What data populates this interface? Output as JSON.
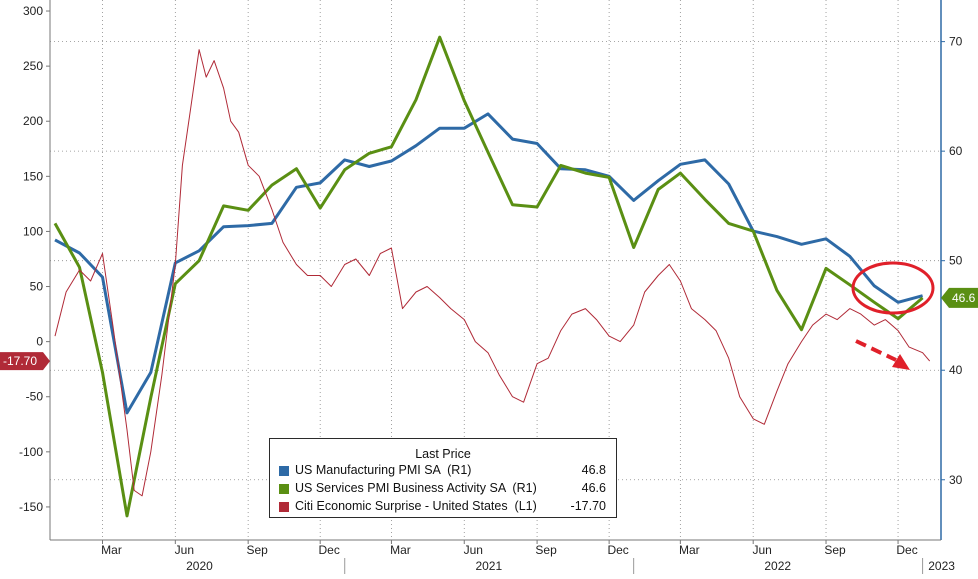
{
  "chart_data": {
    "type": "line",
    "legend": {
      "title": "Last Price",
      "placement": "bottom-center",
      "entries": [
        {
          "name": "US Manufacturing PMI SA  (R1)",
          "value": "46.8",
          "color": "#2e6aa6"
        },
        {
          "name": "US Services PMI Business Activity SA  (R1)",
          "value": "46.6",
          "color": "#5a8f13"
        },
        {
          "name": "Citi Economic Surprise - United States  (L1)",
          "value": "-17.70",
          "color": "#b02a37"
        }
      ]
    },
    "left_axis": {
      "ylim": [
        -180,
        310
      ],
      "ticks": [
        "300",
        "250",
        "200",
        "150",
        "100",
        "50",
        "0",
        "-50",
        "-100",
        "-150"
      ]
    },
    "right_axis": {
      "ylim": [
        24.5,
        73.8
      ],
      "ticks": [
        "70",
        "60",
        "50",
        "40",
        "30"
      ]
    },
    "x_axis": {
      "ticks": [
        "Mar",
        "Jun",
        "Sep",
        "Dec",
        "Mar",
        "Jun",
        "Sep",
        "Dec",
        "Mar",
        "Jun",
        "Sep",
        "Dec"
      ],
      "years": [
        "2020",
        "2021",
        "2022",
        "2023"
      ]
    },
    "grid": true,
    "series": [
      {
        "name": "US Manufacturing PMI SA  (R1)",
        "axis": "right",
        "color": "#2e6aa6",
        "x": [
          "2020-01",
          "2020-02",
          "2020-03",
          "2020-04",
          "2020-05",
          "2020-06",
          "2020-07",
          "2020-08",
          "2020-09",
          "2020-10",
          "2020-11",
          "2020-12",
          "2021-01",
          "2021-02",
          "2021-03",
          "2021-04",
          "2021-05",
          "2021-06",
          "2021-07",
          "2021-08",
          "2021-09",
          "2021-10",
          "2021-11",
          "2021-12",
          "2022-01",
          "2022-02",
          "2022-03",
          "2022-04",
          "2022-05",
          "2022-06",
          "2022-07",
          "2022-08",
          "2022-09",
          "2022-10",
          "2022-11",
          "2022-12",
          "2023-01"
        ],
        "values": [
          51.9,
          50.7,
          48.5,
          36.1,
          39.8,
          49.8,
          50.9,
          53.1,
          53.2,
          53.4,
          56.7,
          57.1,
          59.2,
          58.6,
          59.1,
          60.5,
          62.1,
          62.1,
          63.4,
          61.1,
          60.7,
          58.4,
          58.3,
          57.7,
          55.5,
          57.3,
          58.8,
          59.2,
          57.0,
          52.7,
          52.2,
          51.5,
          52.0,
          50.4,
          47.7,
          46.2,
          46.8
        ]
      },
      {
        "name": "US Services PMI Business Activity SA  (R1)",
        "axis": "right",
        "color": "#5a8f13",
        "x": [
          "2020-01",
          "2020-02",
          "2020-03",
          "2020-04",
          "2020-05",
          "2020-06",
          "2020-07",
          "2020-08",
          "2020-09",
          "2020-10",
          "2020-11",
          "2020-12",
          "2021-01",
          "2021-02",
          "2021-03",
          "2021-04",
          "2021-05",
          "2021-06",
          "2021-07",
          "2021-08",
          "2021-09",
          "2021-10",
          "2021-11",
          "2021-12",
          "2022-01",
          "2022-02",
          "2022-03",
          "2022-04",
          "2022-05",
          "2022-06",
          "2022-07",
          "2022-08",
          "2022-09",
          "2022-10",
          "2022-11",
          "2022-12",
          "2023-01"
        ],
        "values": [
          53.4,
          49.4,
          39.8,
          26.7,
          37.5,
          47.9,
          50.0,
          55.0,
          54.6,
          56.9,
          58.4,
          54.8,
          58.3,
          59.8,
          60.4,
          64.7,
          70.4,
          64.6,
          59.9,
          55.1,
          54.9,
          58.7,
          58.0,
          57.6,
          51.2,
          56.5,
          58.0,
          55.6,
          53.4,
          52.7,
          47.3,
          43.7,
          49.3,
          47.8,
          46.2,
          44.7,
          46.6
        ]
      },
      {
        "name": "Citi Economic Surprise - United States  (L1)",
        "axis": "left",
        "color": "#b02a37",
        "x": [
          "2020-01-01",
          "2020-01-15",
          "2020-02-01",
          "2020-02-15",
          "2020-03-01",
          "2020-03-15",
          "2020-04-01",
          "2020-04-10",
          "2020-04-20",
          "2020-05-01",
          "2020-05-15",
          "2020-06-01",
          "2020-06-10",
          "2020-06-20",
          "2020-07-01",
          "2020-07-10",
          "2020-07-20",
          "2020-08-01",
          "2020-08-10",
          "2020-08-20",
          "2020-09-01",
          "2020-09-15",
          "2020-10-01",
          "2020-10-15",
          "2020-11-01",
          "2020-11-15",
          "2020-12-01",
          "2020-12-15",
          "2021-01-01",
          "2021-01-15",
          "2021-02-01",
          "2021-02-15",
          "2021-03-01",
          "2021-03-15",
          "2021-04-01",
          "2021-04-15",
          "2021-05-01",
          "2021-05-15",
          "2021-06-01",
          "2021-06-15",
          "2021-07-01",
          "2021-07-15",
          "2021-08-01",
          "2021-08-15",
          "2021-09-01",
          "2021-09-15",
          "2021-10-01",
          "2021-10-15",
          "2021-11-01",
          "2021-11-15",
          "2021-12-01",
          "2021-12-15",
          "2022-01-01",
          "2022-01-15",
          "2022-02-01",
          "2022-02-15",
          "2022-03-01",
          "2022-03-15",
          "2022-04-01",
          "2022-04-15",
          "2022-05-01",
          "2022-05-15",
          "2022-06-01",
          "2022-06-15",
          "2022-07-01",
          "2022-07-15",
          "2022-08-01",
          "2022-08-15",
          "2022-09-01",
          "2022-09-15",
          "2022-10-01",
          "2022-10-15",
          "2022-11-01",
          "2022-11-15",
          "2022-12-01",
          "2022-12-15",
          "2023-01-01",
          "2023-01-10"
        ],
        "values": [
          5,
          45,
          65,
          55,
          80,
          10,
          -80,
          -135,
          -140,
          -100,
          -30,
          70,
          160,
          210,
          265,
          240,
          255,
          230,
          200,
          190,
          160,
          150,
          120,
          90,
          70,
          60,
          60,
          50,
          70,
          75,
          60,
          80,
          85,
          30,
          45,
          50,
          40,
          30,
          20,
          0,
          -10,
          -30,
          -50,
          -55,
          -20,
          -15,
          10,
          25,
          30,
          20,
          5,
          0,
          15,
          45,
          60,
          70,
          55,
          30,
          20,
          10,
          -15,
          -50,
          -70,
          -75,
          -45,
          -20,
          0,
          15,
          25,
          20,
          30,
          25,
          15,
          20,
          10,
          -5,
          -10,
          -17.7
        ]
      }
    ],
    "annotations": {
      "left_last_label": "-17.70",
      "right_last_label": "46.6",
      "right_last_color": "#5a8f13",
      "left_last_color": "#b02a37",
      "highlight_circle_color": "#e0202a",
      "arrow_color": "#e0202a"
    }
  }
}
